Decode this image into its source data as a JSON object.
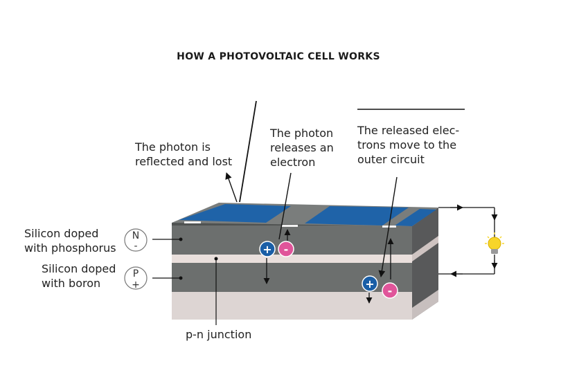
{
  "title": "HOW A PHOTOVOLTAIC CELL WORKS",
  "labels": {
    "reflected_1": "The photon is",
    "reflected_2": "reflected and lost",
    "releases_1": "The photon",
    "releases_2": "releases an",
    "releases_3": "electron",
    "moves_1": "The released elec-",
    "moves_2": "trons move to the",
    "moves_3": "outer circuit",
    "n_layer_1": "Silicon doped",
    "n_layer_2": "with phosphorus",
    "p_layer_1": "Silicon doped",
    "p_layer_2": "with boron",
    "junction": "p-n junction"
  },
  "symbols": {
    "n_letter": "N",
    "n_sign": "-",
    "p_letter": "P",
    "p_sign": "+",
    "hole": "+",
    "electron": "-"
  },
  "colors": {
    "top_blue": "#1f63a8",
    "side_gray": "#6c6f6e",
    "junction_band": "#e9dfdc",
    "base_band": "#d9d1cf",
    "hole_blue": "#1a5ea6",
    "electron_pink": "#e0559a",
    "bulb_yellow": "#f7d52a"
  }
}
